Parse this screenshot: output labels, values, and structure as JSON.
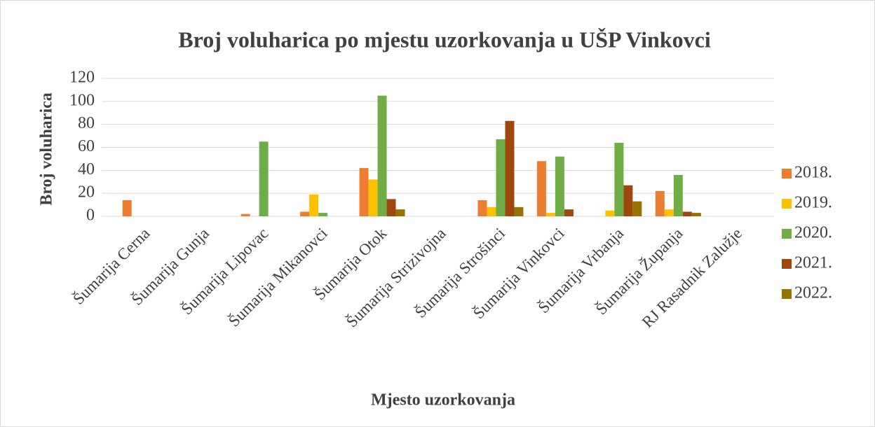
{
  "chart_data": {
    "type": "bar",
    "title": "Broj voluharica po mjestu uzorkovanja u UŠP Vinkovci",
    "y_label": "Broj voluharica",
    "x_label": "Mjesto uzorkovanja",
    "categories": [
      "Šumarija Cerna",
      "Šumarija Gunja",
      "Šumarija Lipovac",
      "Šumarija Mikanovci",
      "Šumarija Otok",
      "Šumarija Strizivojna",
      "Šumarija Strošinci",
      "Šumarija Vinkovci",
      "Šumarija Vrbanja",
      "Šumarija Županja",
      "RJ Rasadnik Zalužje"
    ],
    "series": [
      {
        "name": "2018.",
        "color": "#ed7d31",
        "values": [
          14,
          0,
          2,
          4,
          42,
          0,
          14,
          48,
          0,
          22,
          0
        ]
      },
      {
        "name": "2019.",
        "color": "#ffc000",
        "values": [
          0,
          0,
          0,
          19,
          32,
          0,
          8,
          3,
          5,
          6,
          0
        ]
      },
      {
        "name": "2020.",
        "color": "#70ad47",
        "values": [
          0,
          0,
          65,
          3,
          105,
          0,
          67,
          52,
          64,
          36,
          0
        ]
      },
      {
        "name": "2021.",
        "color": "#9e480e",
        "values": [
          0,
          0,
          0,
          0,
          15,
          0,
          83,
          6,
          27,
          4,
          0
        ]
      },
      {
        "name": "2022.",
        "color": "#997300",
        "values": [
          0,
          0,
          0,
          0,
          6,
          0,
          8,
          0,
          13,
          3,
          0
        ]
      }
    ],
    "ylim": [
      0,
      120
    ],
    "yticks": [
      0,
      20,
      40,
      60,
      80,
      100,
      120
    ],
    "grid": true,
    "legend": "right"
  }
}
